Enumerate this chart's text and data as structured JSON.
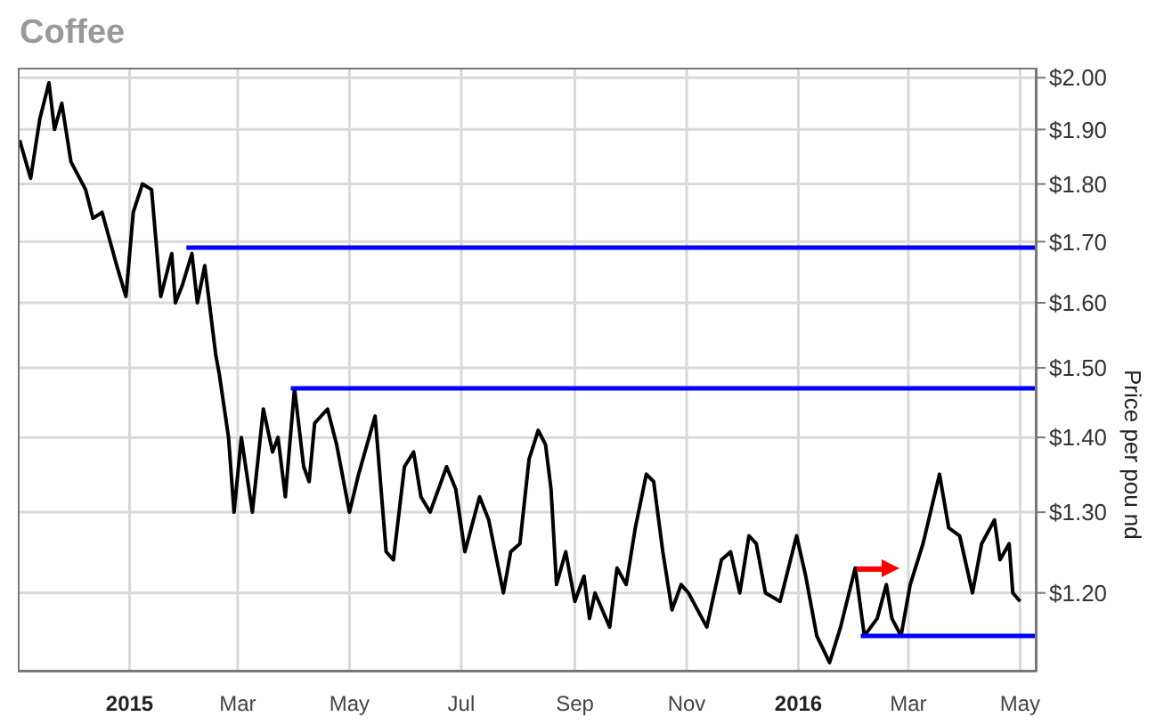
{
  "chart_data": {
    "type": "line",
    "title": "Coffee",
    "ylabel": "Price per pou nd",
    "log": "y",
    "grid": true,
    "marker": "none",
    "line_style": "solid",
    "xlim": [
      "2014-11-01",
      "2016-05-10"
    ],
    "xticks": [
      {
        "value": "2015-01-01",
        "label": "2015"
      },
      {
        "value": "2015-03-01",
        "label": "Mar"
      },
      {
        "value": "2015-05-01",
        "label": "May"
      },
      {
        "value": "2015-07-01",
        "label": "Jul"
      },
      {
        "value": "2015-09-01",
        "label": "Sep"
      },
      {
        "value": "2015-11-01",
        "label": "Nov"
      },
      {
        "value": "2016-01-01",
        "label": "2016"
      },
      {
        "value": "2016-03-01",
        "label": "Mar"
      },
      {
        "value": "2016-05-01",
        "label": "May"
      }
    ],
    "ylim": [
      1.11,
      2.02
    ],
    "yticks": [
      {
        "value": 1.2,
        "label": "$1.20"
      },
      {
        "value": 1.3,
        "label": "$1.30"
      },
      {
        "value": 1.4,
        "label": "$1.40"
      },
      {
        "value": 1.5,
        "label": "$1.50"
      },
      {
        "value": 1.6,
        "label": "$1.60"
      },
      {
        "value": 1.7,
        "label": "$1.70"
      },
      {
        "value": 1.8,
        "label": "$1.80"
      },
      {
        "value": 1.9,
        "label": "$1.90"
      },
      {
        "value": 2.0,
        "label": "$2.00"
      }
    ],
    "series": [
      {
        "color": "#000000",
        "x": [
          "2014-11-02",
          "2014-11-08",
          "2014-11-13",
          "2014-11-18",
          "2014-11-21",
          "2014-11-25",
          "2014-11-30",
          "2014-12-08",
          "2014-12-12",
          "2014-12-17",
          "2014-12-25",
          "2014-12-30",
          "2015-01-03",
          "2015-01-08",
          "2015-01-13",
          "2015-01-18",
          "2015-01-24",
          "2015-01-26",
          "2015-01-30",
          "2015-02-04",
          "2015-02-07",
          "2015-02-11",
          "2015-02-17",
          "2015-02-19",
          "2015-02-24",
          "2015-02-27",
          "2015-03-03",
          "2015-03-09",
          "2015-03-15",
          "2015-03-20",
          "2015-03-23",
          "2015-03-27",
          "2015-04-01",
          "2015-04-06",
          "2015-04-09",
          "2015-04-12",
          "2015-04-19",
          "2015-04-24",
          "2015-05-01",
          "2015-05-06",
          "2015-05-15",
          "2015-05-21",
          "2015-05-25",
          "2015-05-31",
          "2015-06-05",
          "2015-06-09",
          "2015-06-14",
          "2015-06-23",
          "2015-06-28",
          "2015-07-03",
          "2015-07-11",
          "2015-07-16",
          "2015-07-24",
          "2015-07-28",
          "2015-08-02",
          "2015-08-07",
          "2015-08-12",
          "2015-08-16",
          "2015-08-19",
          "2015-08-22",
          "2015-08-27",
          "2015-09-01",
          "2015-09-06",
          "2015-09-09",
          "2015-09-12",
          "2015-09-20",
          "2015-09-24",
          "2015-09-29",
          "2015-10-04",
          "2015-10-10",
          "2015-10-14",
          "2015-10-19",
          "2015-10-24",
          "2015-10-29",
          "2015-11-02",
          "2015-11-12",
          "2015-11-20",
          "2015-11-25",
          "2015-11-30",
          "2015-12-05",
          "2015-12-09",
          "2015-12-14",
          "2015-12-22",
          "2015-12-31",
          "2016-01-05",
          "2016-01-11",
          "2016-01-18",
          "2016-01-24",
          "2016-02-01",
          "2016-02-06",
          "2016-02-13",
          "2016-02-18",
          "2016-02-21",
          "2016-02-26",
          "2016-03-02",
          "2016-03-09",
          "2016-03-18",
          "2016-03-23",
          "2016-03-29",
          "2016-04-05",
          "2016-04-10",
          "2016-04-17",
          "2016-04-20",
          "2016-04-25",
          "2016-04-27",
          "2016-05-01"
        ],
        "values": [
          1.88,
          1.81,
          1.92,
          1.99,
          1.9,
          1.95,
          1.84,
          1.79,
          1.74,
          1.75,
          1.66,
          1.61,
          1.75,
          1.8,
          1.79,
          1.61,
          1.68,
          1.6,
          1.63,
          1.68,
          1.6,
          1.66,
          1.52,
          1.49,
          1.4,
          1.3,
          1.4,
          1.3,
          1.44,
          1.38,
          1.4,
          1.32,
          1.47,
          1.36,
          1.34,
          1.42,
          1.44,
          1.39,
          1.3,
          1.35,
          1.43,
          1.25,
          1.24,
          1.36,
          1.38,
          1.32,
          1.3,
          1.36,
          1.33,
          1.25,
          1.32,
          1.29,
          1.2,
          1.25,
          1.26,
          1.37,
          1.41,
          1.39,
          1.33,
          1.21,
          1.25,
          1.19,
          1.22,
          1.17,
          1.2,
          1.16,
          1.23,
          1.21,
          1.28,
          1.35,
          1.34,
          1.25,
          1.18,
          1.21,
          1.2,
          1.16,
          1.24,
          1.25,
          1.2,
          1.27,
          1.26,
          1.2,
          1.19,
          1.27,
          1.22,
          1.15,
          1.12,
          1.16,
          1.23,
          1.15,
          1.17,
          1.21,
          1.17,
          1.15,
          1.21,
          1.26,
          1.35,
          1.28,
          1.27,
          1.2,
          1.26,
          1.29,
          1.24,
          1.26,
          1.2,
          1.19
        ]
      },
      {
        "color": "#0000ff",
        "x": [
          "2015-02-01",
          "2016-05-10"
        ],
        "values": [
          1.69,
          1.69
        ]
      },
      {
        "color": "#0000ff",
        "x": [
          "2015-03-30",
          "2016-05-10"
        ],
        "values": [
          1.47,
          1.47
        ]
      },
      {
        "color": "#0000ff",
        "x": [
          "2016-02-04",
          "2016-05-10"
        ],
        "values": [
          1.15,
          1.15
        ]
      }
    ]
  }
}
